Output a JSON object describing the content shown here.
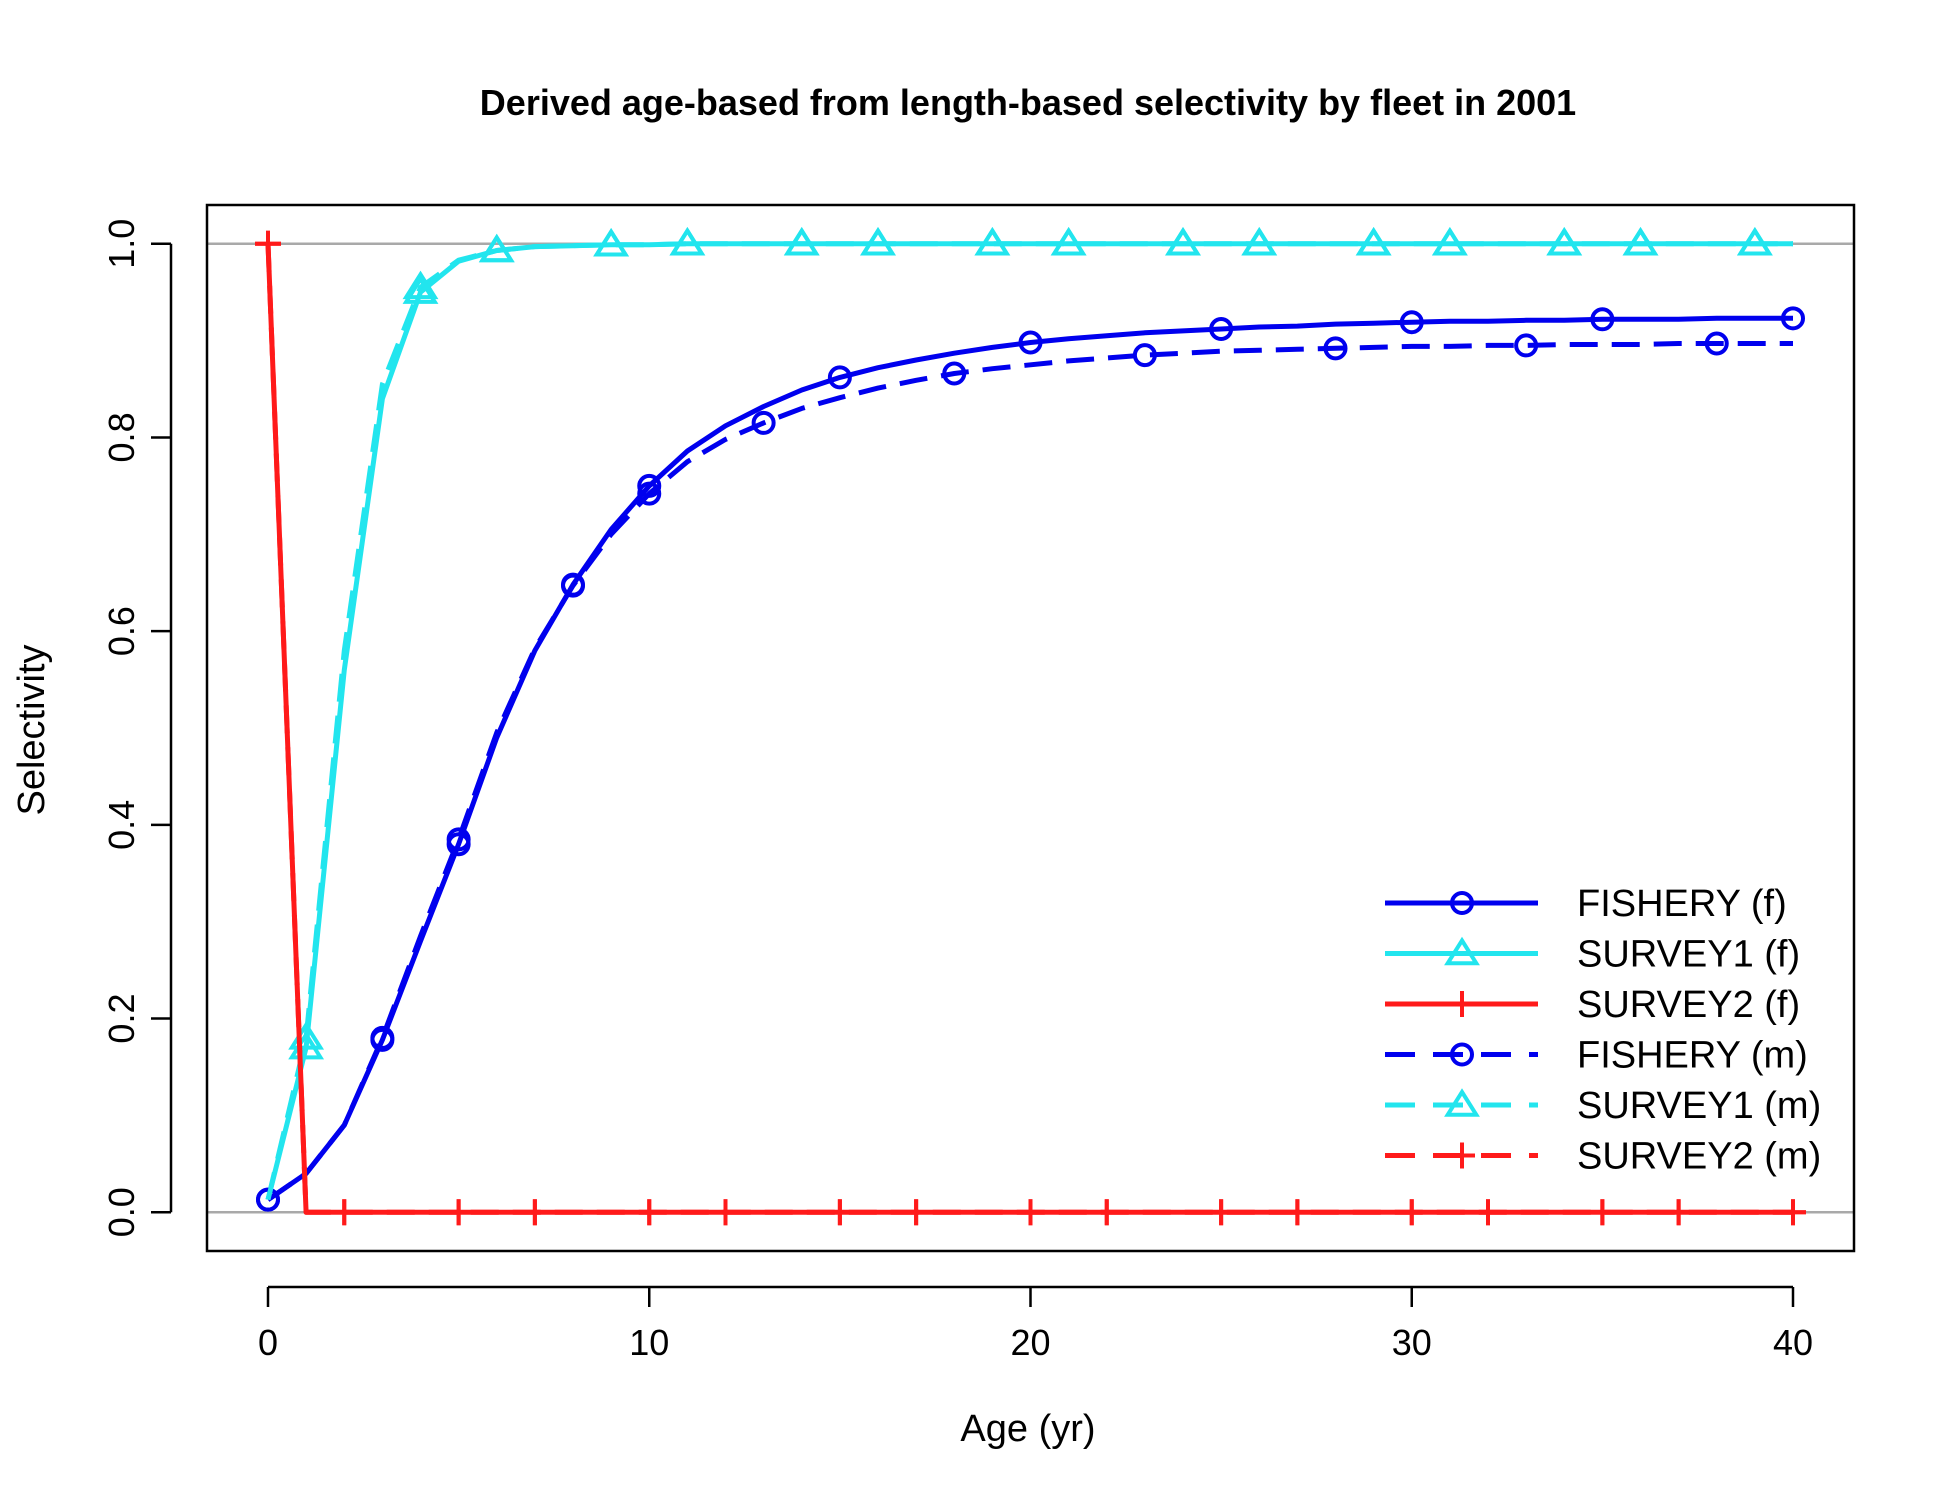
{
  "chart_data": {
    "type": "line",
    "title": "Derived age-based from length-based selectivity by fleet in 2001",
    "xlabel": "Age (yr)",
    "ylabel": "Selectivity",
    "xlim": [
      -1.6,
      41.6
    ],
    "ylim": [
      -0.04,
      1.04
    ],
    "xticks": [
      0,
      10,
      20,
      30,
      40
    ],
    "yticks": [
      0.0,
      0.2,
      0.4,
      0.6,
      0.8,
      1.0
    ],
    "ytick_labels": [
      "0.0",
      "0.2",
      "0.4",
      "0.6",
      "0.8",
      "1.0"
    ],
    "reference_lines": [
      0,
      1
    ],
    "grid": false,
    "legend_position": "bottom-right",
    "x": [
      0,
      1,
      2,
      3,
      4,
      5,
      6,
      7,
      8,
      9,
      10,
      11,
      12,
      13,
      14,
      15,
      16,
      17,
      18,
      19,
      20,
      21,
      22,
      23,
      24,
      25,
      26,
      27,
      28,
      29,
      30,
      31,
      32,
      33,
      34,
      35,
      36,
      37,
      38,
      39,
      40
    ],
    "series": [
      {
        "name": "FISHERY (f)",
        "color": "#0000ee",
        "dash": "solid",
        "marker": "circle",
        "marker_at": [
          0,
          3,
          5,
          8,
          10,
          15,
          20,
          25,
          30,
          35,
          40
        ],
        "values": [
          0.013,
          0.04,
          0.09,
          0.178,
          0.28,
          0.38,
          0.49,
          0.58,
          0.648,
          0.705,
          0.75,
          0.786,
          0.812,
          0.832,
          0.849,
          0.862,
          0.872,
          0.88,
          0.887,
          0.893,
          0.898,
          0.902,
          0.905,
          0.908,
          0.91,
          0.912,
          0.914,
          0.915,
          0.917,
          0.918,
          0.919,
          0.92,
          0.92,
          0.921,
          0.921,
          0.922,
          0.922,
          0.922,
          0.923,
          0.923,
          0.923
        ]
      },
      {
        "name": "SURVEY1 (f)",
        "color": "#22e5ee",
        "dash": "solid",
        "marker": "triangle",
        "marker_at": [
          1,
          4,
          6,
          9,
          11,
          14,
          16,
          19,
          21,
          24,
          26,
          29,
          31,
          34,
          36,
          39
        ],
        "values": [
          0.013,
          0.17,
          0.56,
          0.84,
          0.95,
          0.982,
          0.993,
          0.997,
          0.998,
          0.999,
          0.999,
          1,
          1,
          1,
          1,
          1,
          1,
          1,
          1,
          1,
          1,
          1,
          1,
          1,
          1,
          1,
          1,
          1,
          1,
          1,
          1,
          1,
          1,
          1,
          1,
          1,
          1,
          1,
          1,
          1,
          1
        ]
      },
      {
        "name": "SURVEY2 (f)",
        "color": "#ff1a1a",
        "dash": "solid",
        "marker": "plus",
        "marker_at": [
          0,
          2,
          5,
          7,
          10,
          12,
          15,
          17,
          20,
          22,
          25,
          27,
          30,
          32,
          35,
          37,
          40
        ],
        "values": [
          1,
          0,
          0,
          0,
          0,
          0,
          0,
          0,
          0,
          0,
          0,
          0,
          0,
          0,
          0,
          0,
          0,
          0,
          0,
          0,
          0,
          0,
          0,
          0,
          0,
          0,
          0,
          0,
          0,
          0,
          0,
          0,
          0,
          0,
          0,
          0,
          0,
          0,
          0,
          0,
          0
        ]
      },
      {
        "name": "FISHERY (m)",
        "color": "#0000ee",
        "dash": "dashed",
        "marker": "circle",
        "marker_at": [
          0,
          3,
          5,
          8,
          10,
          13,
          18,
          23,
          28,
          33,
          38
        ],
        "values": [
          0.013,
          0.04,
          0.09,
          0.18,
          0.285,
          0.385,
          0.495,
          0.582,
          0.647,
          0.7,
          0.742,
          0.775,
          0.798,
          0.815,
          0.83,
          0.841,
          0.851,
          0.859,
          0.866,
          0.871,
          0.875,
          0.879,
          0.882,
          0.885,
          0.887,
          0.889,
          0.89,
          0.891,
          0.892,
          0.893,
          0.894,
          0.894,
          0.895,
          0.895,
          0.896,
          0.896,
          0.896,
          0.897,
          0.897,
          0.897,
          0.897
        ]
      },
      {
        "name": "SURVEY1 (m)",
        "color": "#22e5ee",
        "dash": "dashed",
        "marker": "triangle",
        "marker_at": [
          1,
          4,
          6,
          9,
          11,
          14,
          16,
          19,
          21,
          24,
          26,
          29,
          31,
          34,
          36,
          39
        ],
        "values": [
          0.013,
          0.18,
          0.58,
          0.855,
          0.955,
          0.983,
          0.993,
          0.997,
          0.998,
          0.999,
          0.999,
          1,
          1,
          1,
          1,
          1,
          1,
          1,
          1,
          1,
          1,
          1,
          1,
          1,
          1,
          1,
          1,
          1,
          1,
          1,
          1,
          1,
          1,
          1,
          1,
          1,
          1,
          1,
          1,
          1,
          1
        ]
      },
      {
        "name": "SURVEY2 (m)",
        "color": "#ff1a1a",
        "dash": "dashed",
        "marker": "plus",
        "marker_at": [
          0,
          2,
          5,
          7,
          10,
          12,
          15,
          17,
          20,
          22,
          25,
          27,
          30,
          32,
          35,
          37,
          40
        ],
        "values": [
          1,
          0,
          0,
          0,
          0,
          0,
          0,
          0,
          0,
          0,
          0,
          0,
          0,
          0,
          0,
          0,
          0,
          0,
          0,
          0,
          0,
          0,
          0,
          0,
          0,
          0,
          0,
          0,
          0,
          0,
          0,
          0,
          0,
          0,
          0,
          0,
          0,
          0,
          0,
          0,
          0
        ]
      }
    ]
  }
}
